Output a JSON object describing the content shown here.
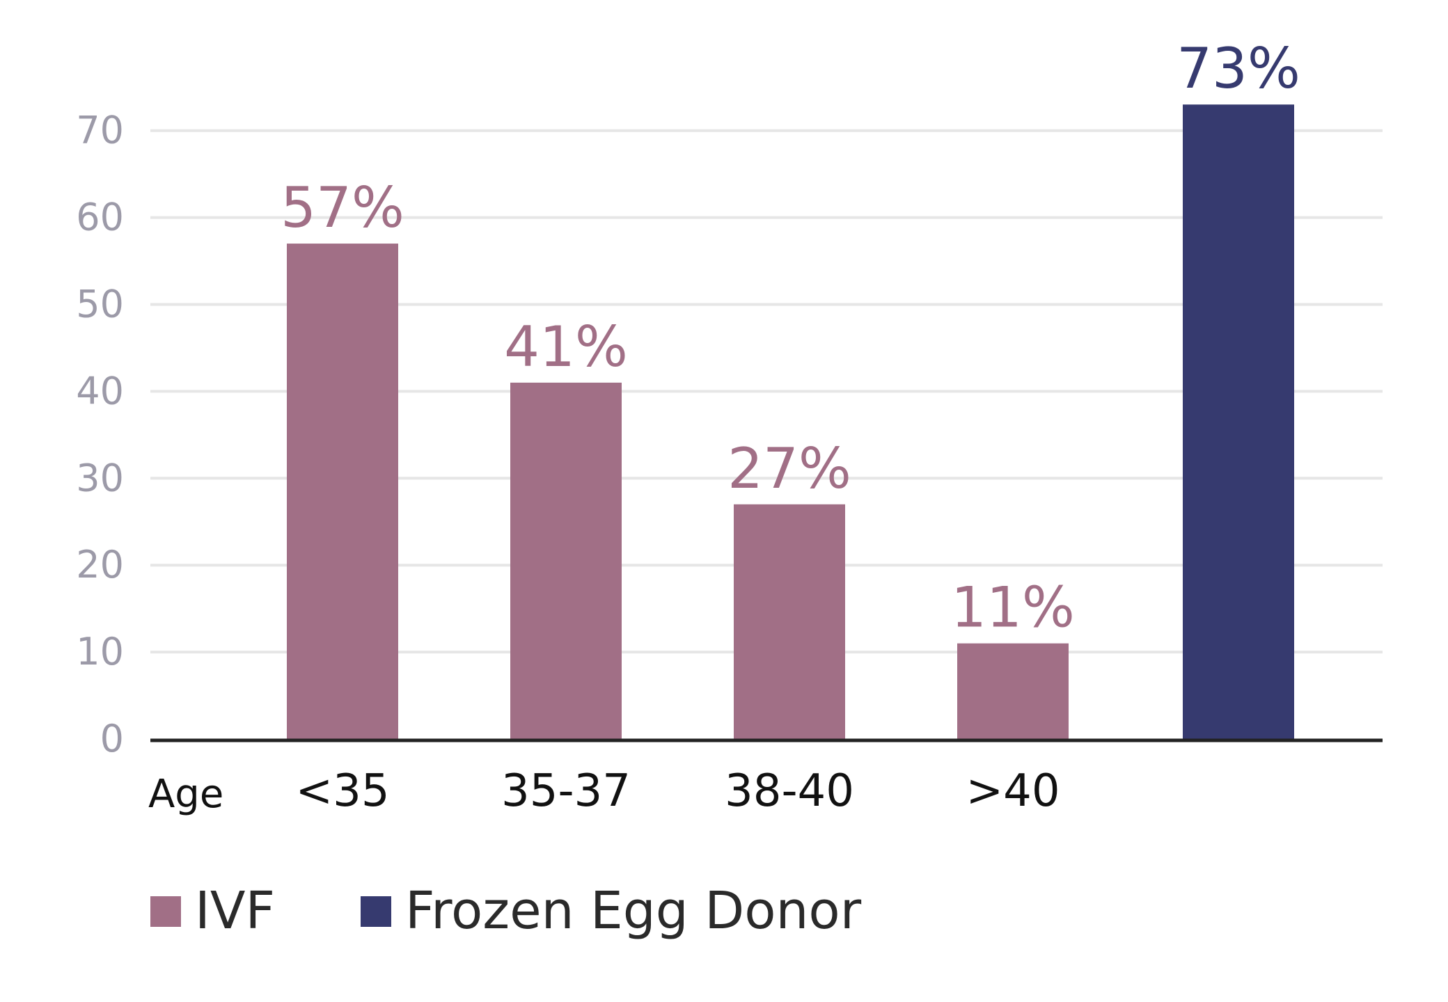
{
  "chart_data": {
    "type": "bar",
    "xlabel": "Age",
    "ylim": [
      0,
      70
    ],
    "yticks": [
      0,
      10,
      20,
      30,
      40,
      50,
      60,
      70
    ],
    "grid": true,
    "legend_position": "bottom-left",
    "colors": {
      "IVF": "#a16f86",
      "Frozen Egg Donor": "#363a6f"
    },
    "bars": [
      {
        "category": "<35",
        "series": "IVF",
        "value": 57,
        "label": "57%"
      },
      {
        "category": "35-37",
        "series": "IVF",
        "value": 41,
        "label": "41%"
      },
      {
        "category": "38-40",
        "series": "IVF",
        "value": 27,
        "label": "27%"
      },
      {
        "category": ">40",
        "series": "IVF",
        "value": 11,
        "label": "11%"
      },
      {
        "category": "",
        "series": "Frozen Egg Donor",
        "value": 73,
        "label": "73%"
      }
    ],
    "legend": [
      {
        "name": "IVF",
        "color": "#a16f86"
      },
      {
        "name": "Frozen Egg Donor",
        "color": "#363a6f"
      }
    ]
  }
}
